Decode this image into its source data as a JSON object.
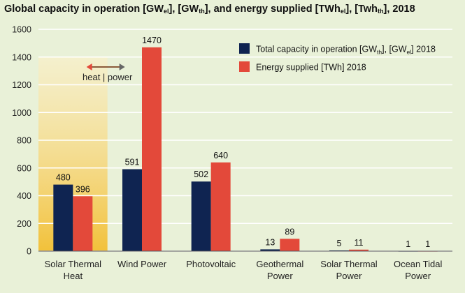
{
  "title": {
    "part1": "Global capacity in operation [GW",
    "sub1": "el",
    "part2": "], [GW",
    "sub2": "th",
    "part3": "], and energy supplied [TWh",
    "sub3": "el",
    "part4": "], [Twh",
    "sub4": "th",
    "part5": "], 2018"
  },
  "colors": {
    "capacity": "#0f2451",
    "energy": "#e3493a",
    "background": "#e9f1d8",
    "grid": "#ffffff",
    "highlight": "#f4c542",
    "arrow": "#8a5a3a"
  },
  "chart_data": {
    "type": "bar",
    "categories": [
      [
        "Solar Thermal",
        "Heat"
      ],
      [
        "Wind Power"
      ],
      [
        "Photovoltaic"
      ],
      [
        "Geothermal",
        "Power"
      ],
      [
        "Solar Thermal",
        "Power"
      ],
      [
        "Ocean Tidal",
        "Power"
      ]
    ],
    "series": [
      {
        "name": "Total capacity in operation [GWth], [GWel] 2018",
        "legend_main": "Total capacity in operation [GW",
        "legend_sub1": "th",
        "legend_mid": "], [GW",
        "legend_sub2": "el",
        "legend_end": "] 2018",
        "values": [
          480,
          591,
          502,
          13,
          5,
          1
        ],
        "color": "#0f2451"
      },
      {
        "name": "Energy supplied [TWh] 2018",
        "legend_main": "Energy supplied [TWh] 2018",
        "values": [
          396,
          1470,
          640,
          89,
          11,
          1
        ],
        "color": "#e3493a"
      }
    ],
    "ylim": [
      0,
      1600
    ],
    "yticks": [
      0,
      200,
      400,
      600,
      800,
      1000,
      1200,
      1400,
      1600
    ],
    "grid": true,
    "legend_position": "top-right",
    "annotation": "heat | power"
  }
}
